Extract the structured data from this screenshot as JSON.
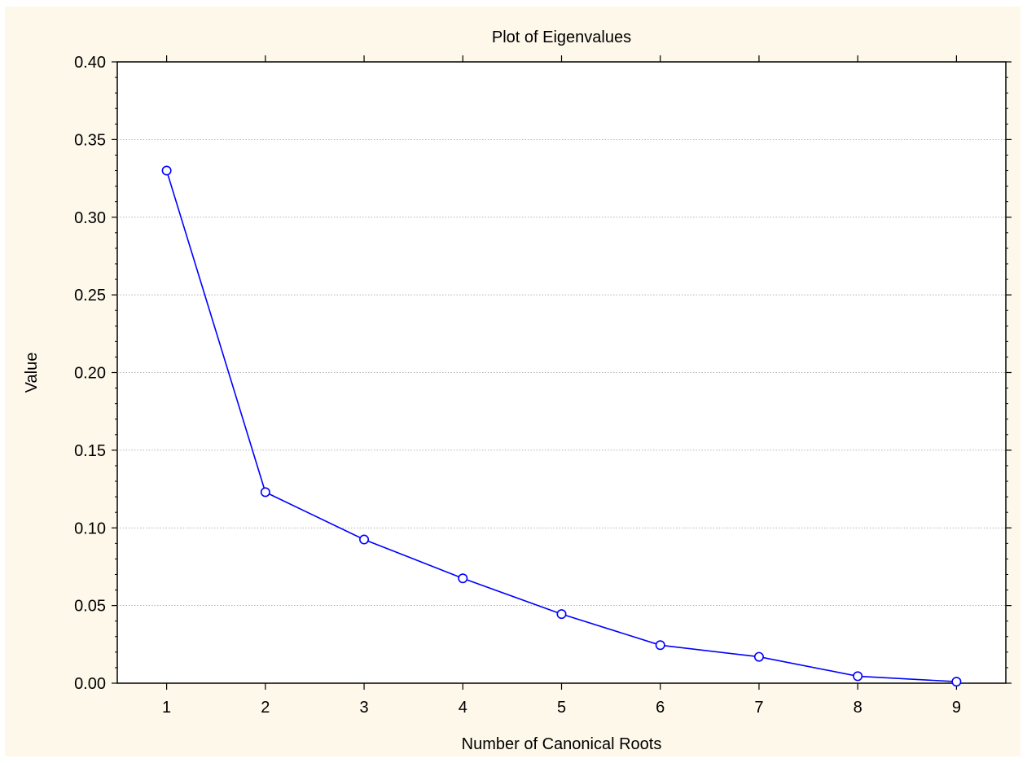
{
  "chart_data": {
    "type": "line",
    "title": "Plot of Eigenvalues",
    "xlabel": "Number of Canonical Roots",
    "ylabel": "Value",
    "x": [
      1,
      2,
      3,
      4,
      5,
      6,
      7,
      8,
      9
    ],
    "series": [
      {
        "values": [
          0.33,
          0.123,
          0.0925,
          0.0675,
          0.0445,
          0.0245,
          0.017,
          0.0045,
          0.001
        ]
      }
    ],
    "xticks": [
      "1",
      "2",
      "3",
      "4",
      "5",
      "6",
      "7",
      "8",
      "9"
    ],
    "yticks": [
      "0.00",
      "0.05",
      "0.10",
      "0.15",
      "0.20",
      "0.25",
      "0.30",
      "0.35",
      "0.40"
    ],
    "xlim": [
      0.5,
      9.5
    ],
    "ylim": [
      0,
      0.4
    ],
    "grid": true,
    "line_color": "#0000ff",
    "background_color": "#fdf8ea"
  }
}
